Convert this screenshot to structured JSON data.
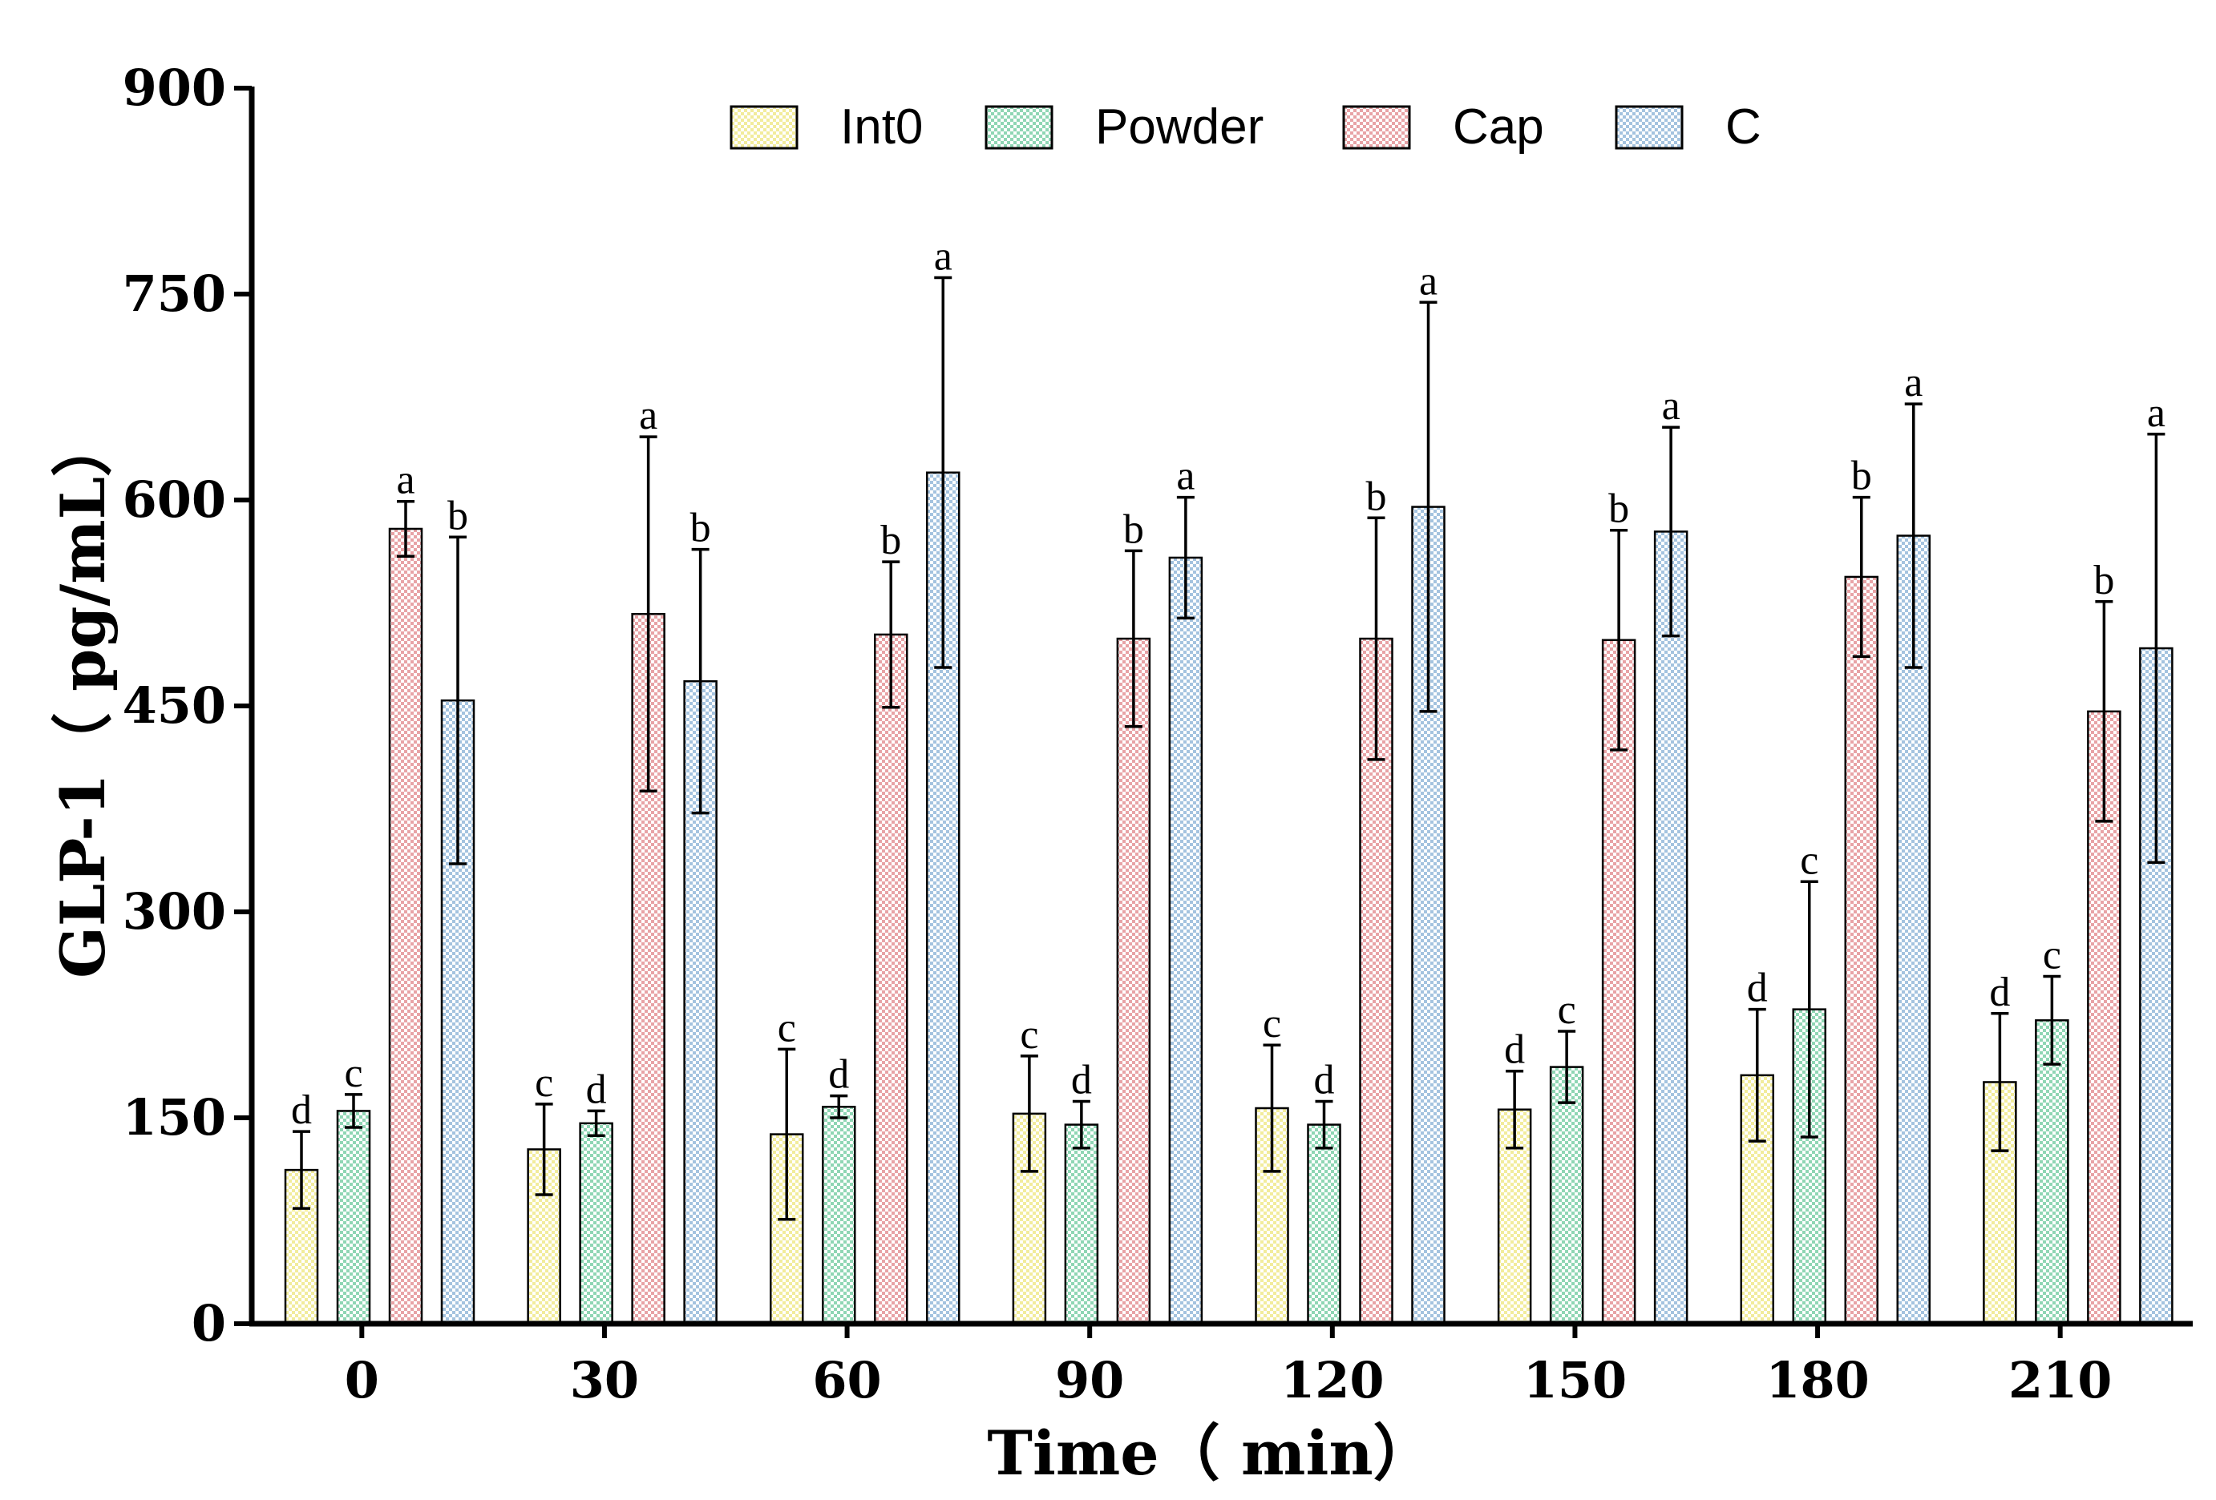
{
  "chart_data": {
    "type": "bar",
    "title": "",
    "xlabel": "Time（ min）",
    "ylabel": "GLP-1（ pg/mL）",
    "ylim": [
      0,
      900
    ],
    "yticks": [
      "0",
      "150",
      "300",
      "450",
      "600",
      "750",
      "900"
    ],
    "categories": [
      "0",
      "30",
      "60",
      "90",
      "120",
      "150",
      "180",
      "210"
    ],
    "legend_position": "top",
    "series": [
      {
        "name": "Int0",
        "color": "#f2ec9c",
        "values": [
          112,
          127,
          138,
          153,
          157,
          156,
          181,
          176
        ],
        "errors": [
          28,
          33,
          62,
          42,
          46,
          28,
          48,
          50
        ],
        "labels": [
          "d",
          "c",
          "c",
          "c",
          "c",
          "d",
          "d",
          "d"
        ]
      },
      {
        "name": "Powder",
        "color": "#8fd6b4",
        "values": [
          155,
          146,
          158,
          145,
          145,
          187,
          229,
          221
        ],
        "errors": [
          12,
          9,
          8,
          17,
          17,
          26,
          93,
          32
        ],
        "labels": [
          "c",
          "d",
          "d",
          "d",
          "d",
          "c",
          "c",
          "c"
        ]
      },
      {
        "name": "Cap",
        "color": "#e8a3a6",
        "values": [
          579,
          517,
          502,
          499,
          499,
          498,
          544,
          446
        ],
        "errors": [
          20,
          129,
          53,
          64,
          88,
          80,
          58,
          80
        ],
        "labels": [
          "a",
          "a",
          "b",
          "b",
          "b",
          "b",
          "b",
          "b"
        ]
      },
      {
        "name": "C",
        "color": "#a4c3df",
        "values": [
          454,
          468,
          620,
          558,
          595,
          577,
          574,
          492
        ],
        "errors": [
          119,
          96,
          142,
          44,
          149,
          76,
          96,
          156
        ],
        "labels": [
          "b",
          "b",
          "a",
          "a",
          "a",
          "a",
          "a",
          "a"
        ]
      }
    ]
  }
}
